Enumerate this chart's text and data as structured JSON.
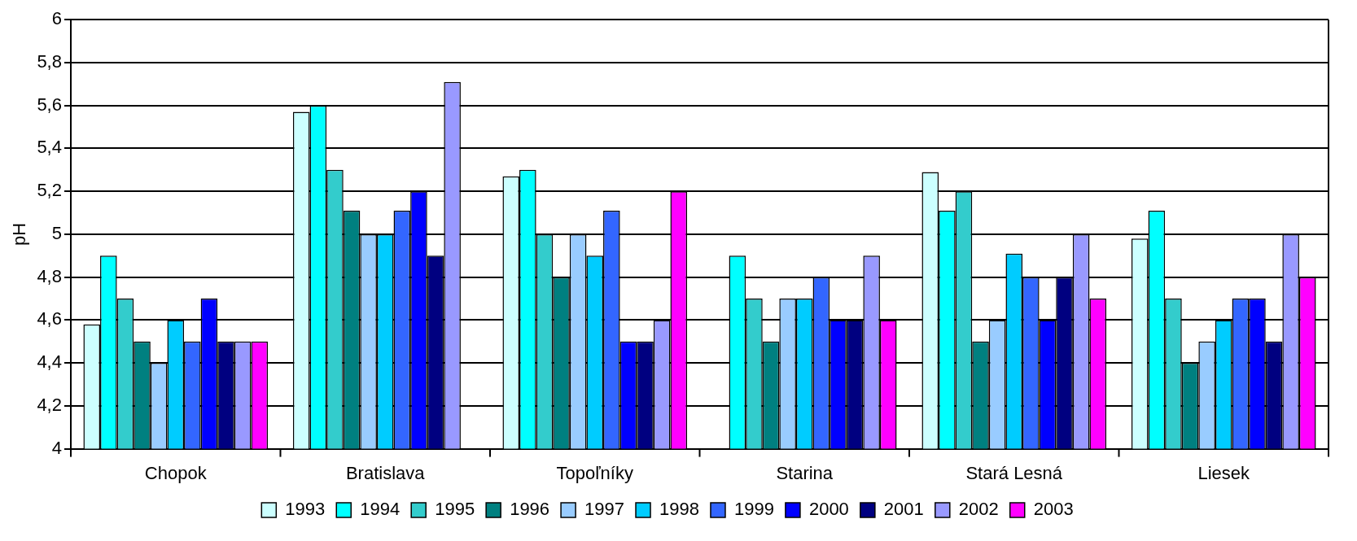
{
  "chart_data": {
    "type": "bar",
    "ylabel": "pH",
    "categories": [
      "Chopok",
      "Bratislava",
      "Topoľníky",
      "Starina",
      "Stará Lesná",
      "Liesek"
    ],
    "series": [
      {
        "name": "1993",
        "color": "#ccffff",
        "values": [
          4.58,
          5.57,
          5.27,
          null,
          5.29,
          4.98
        ]
      },
      {
        "name": "1994",
        "color": "#00ffff",
        "values": [
          4.9,
          5.6,
          5.3,
          4.9,
          5.11,
          5.11
        ]
      },
      {
        "name": "1995",
        "color": "#33cccc",
        "values": [
          4.7,
          5.3,
          5.0,
          4.7,
          5.2,
          4.7
        ]
      },
      {
        "name": "1996",
        "color": "#008080",
        "values": [
          4.5,
          5.11,
          4.8,
          4.5,
          4.5,
          4.4
        ]
      },
      {
        "name": "1997",
        "color": "#99ccff",
        "values": [
          4.4,
          5.0,
          5.0,
          4.7,
          4.6,
          4.5
        ]
      },
      {
        "name": "1998",
        "color": "#00ccff",
        "values": [
          4.6,
          5.0,
          4.9,
          4.7,
          4.91,
          4.6
        ]
      },
      {
        "name": "1999",
        "color": "#3366ff",
        "values": [
          4.5,
          5.11,
          5.11,
          4.8,
          4.8,
          4.7
        ]
      },
      {
        "name": "2000",
        "color": "#0000ff",
        "values": [
          4.7,
          5.2,
          4.5,
          4.6,
          4.6,
          4.7
        ]
      },
      {
        "name": "2001",
        "color": "#000080",
        "values": [
          4.5,
          4.9,
          4.5,
          4.6,
          4.8,
          4.5
        ]
      },
      {
        "name": "2002",
        "color": "#9999ff",
        "values": [
          4.5,
          5.71,
          4.6,
          4.9,
          5.0,
          5.0
        ]
      },
      {
        "name": "2003",
        "color": "#ff00ff",
        "values": [
          4.5,
          null,
          5.2,
          4.6,
          4.7,
          4.8
        ]
      }
    ],
    "ylim": [
      4,
      6
    ],
    "yticks": [
      4,
      {
        "value": 4.2,
        "label": "4,2"
      },
      {
        "value": 4.4,
        "label": "4,4"
      },
      {
        "value": 4.6,
        "label": "4,6"
      },
      {
        "value": 4.8,
        "label": "4,8"
      },
      5,
      {
        "value": 5.2,
        "label": "5,2"
      },
      {
        "value": 5.4,
        "label": "5,4"
      },
      {
        "value": 5.6,
        "label": "5,6"
      },
      {
        "value": 5.8,
        "label": "5,8"
      },
      6
    ],
    "grid": "y",
    "legend": "bottom"
  }
}
